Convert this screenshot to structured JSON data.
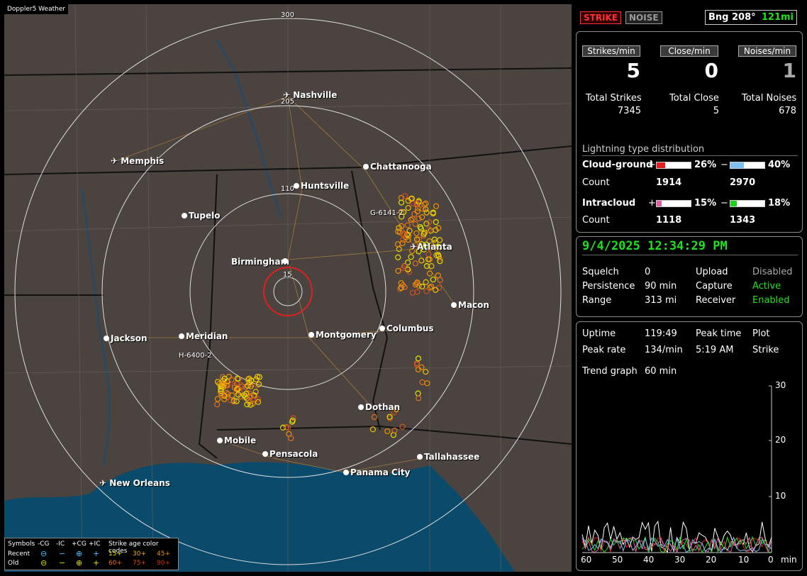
{
  "app_title": "Doppler5 Weather",
  "colors": {
    "strike_red": "#e02020",
    "green": "#20e020",
    "cyan": "#40c0ff",
    "pink": "#e060a0",
    "map_bg": "#4a433f",
    "sea": "#0a4a6a"
  },
  "top": {
    "strike_label": "STRIKE",
    "noise_label": "NOISE",
    "bearing": "Bng 208°",
    "distance": "121mi"
  },
  "stats": {
    "strikes_min_label": "Strikes/min",
    "close_min_label": "Close/min",
    "noises_min_label": "Noises/min",
    "strikes_min": "5",
    "close_min": "0",
    "noises_min": "1",
    "total_strikes_label": "Total Strikes",
    "total_close_label": "Total Close",
    "total_noises_label": "Total Noises",
    "total_strikes": "7345",
    "total_close": "5",
    "total_noises": "678"
  },
  "distribution": {
    "title": "Lightning type distribution",
    "cg_label": "Cloud-ground",
    "ic_label": "Intracloud",
    "count_label": "Count",
    "plus": "+",
    "minus": "−",
    "cg_pos_pct": "26%",
    "cg_neg_pct": "40%",
    "ic_pos_pct": "15%",
    "ic_neg_pct": "18%",
    "cg_pos_count": "1914",
    "cg_neg_count": "2970",
    "ic_pos_count": "1118",
    "ic_neg_count": "1343",
    "cg_pos_frac": 0.26,
    "cg_neg_frac": 0.4,
    "ic_pos_frac": 0.15,
    "ic_neg_frac": 0.18
  },
  "status": {
    "datetime": "9/4/2025 12:34:29 PM",
    "squelch_label": "Squelch",
    "squelch": "0",
    "persistence_label": "Persistence",
    "persistence": "90 min",
    "range_label": "Range",
    "range": "313 mi",
    "upload_label": "Upload",
    "upload": "Disabled",
    "capture_label": "Capture",
    "capture": "Active",
    "receiver_label": "Receiver",
    "receiver": "Enabled"
  },
  "trend": {
    "uptime_label": "Uptime",
    "uptime": "119:49",
    "peak_time_label": "Peak time",
    "peak_time": "5:19 AM",
    "plot_label": "Plot",
    "plot": "Strike",
    "peak_rate_label": "Peak rate",
    "peak_rate": "134/min",
    "trend_graph_label": "Trend graph",
    "trend_graph": "60 min",
    "y_ticks": [
      "30",
      "20",
      "10"
    ],
    "x_ticks": [
      "60",
      "50",
      "40",
      "30",
      "20",
      "10",
      "0"
    ],
    "x_unit": "min"
  },
  "map": {
    "ring_labels": [
      "300",
      "205",
      "110",
      "15"
    ],
    "cities": [
      "Nashville",
      "Memphis",
      "Chattanooga",
      "Huntsville",
      "Tupelo",
      "Atlanta",
      "Birmingham",
      "Macon",
      "Jackson",
      "Meridian",
      "Montgomery",
      "Columbus",
      "Dothan",
      "Mobile",
      "Pensacola",
      "Tallahassee",
      "Panama City",
      "New Orleans"
    ],
    "cell_labels": [
      "G-6141-2",
      "H-6400-2"
    ]
  },
  "legend": {
    "symbols_label": "Symbols",
    "cg_neg": "-CG",
    "ic_neg": "-IC",
    "cg_pos": "+CG",
    "ic_pos": "+IC",
    "age_label": "Strike age color codes",
    "recent_label": "Recent",
    "old_label": "Old",
    "age_recent": [
      "15+",
      "30+",
      "45+"
    ],
    "age_old": [
      "60+",
      "75+",
      "90+"
    ]
  }
}
